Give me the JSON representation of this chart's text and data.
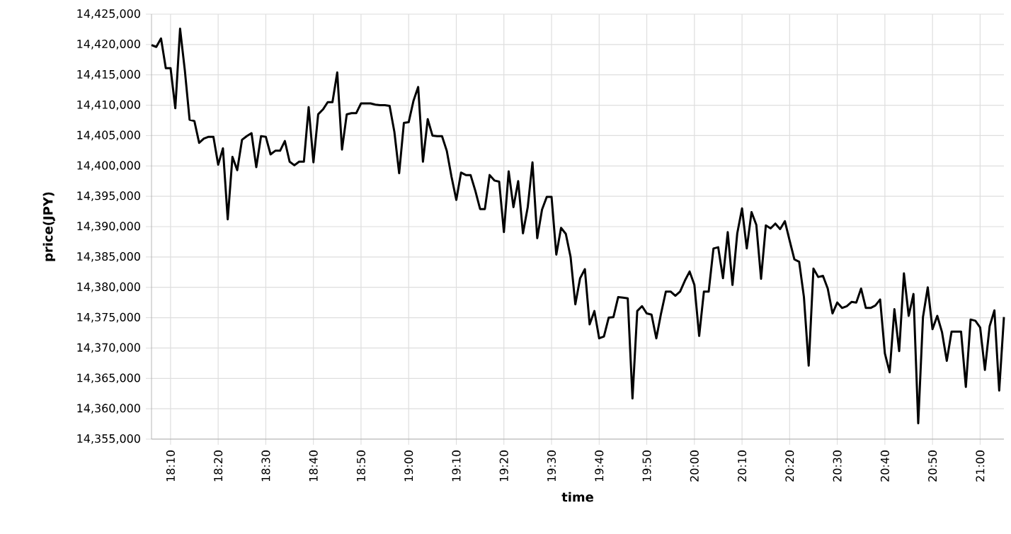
{
  "chart_data": {
    "type": "line",
    "xlabel": "time",
    "ylabel": "price(JPY)",
    "grid": true,
    "marker": "none",
    "line_style": "solid",
    "xlim": [
      18.1,
      21.0833
    ],
    "ylim": [
      14355000,
      14425000
    ],
    "xticks": [
      {
        "value": 18.1667,
        "label": "18:10"
      },
      {
        "value": 18.3333,
        "label": "18:20"
      },
      {
        "value": 18.5,
        "label": "18:30"
      },
      {
        "value": 18.6667,
        "label": "18:40"
      },
      {
        "value": 18.8333,
        "label": "18:50"
      },
      {
        "value": 19,
        "label": "19:00"
      },
      {
        "value": 19.1667,
        "label": "19:10"
      },
      {
        "value": 19.3333,
        "label": "19:20"
      },
      {
        "value": 19.5,
        "label": "19:30"
      },
      {
        "value": 19.6667,
        "label": "19:40"
      },
      {
        "value": 19.8333,
        "label": "19:50"
      },
      {
        "value": 20,
        "label": "20:00"
      },
      {
        "value": 20.1667,
        "label": "20:10"
      },
      {
        "value": 20.3333,
        "label": "20:20"
      },
      {
        "value": 20.5,
        "label": "20:30"
      },
      {
        "value": 20.6667,
        "label": "20:40"
      },
      {
        "value": 20.8333,
        "label": "20:50"
      },
      {
        "value": 21,
        "label": "21:00"
      }
    ],
    "yticks": [
      {
        "value": 14355000,
        "label": "14,355,000"
      },
      {
        "value": 14360000,
        "label": "14,360,000"
      },
      {
        "value": 14365000,
        "label": "14,365,000"
      },
      {
        "value": 14370000,
        "label": "14,370,000"
      },
      {
        "value": 14375000,
        "label": "14,375,000"
      },
      {
        "value": 14380000,
        "label": "14,380,000"
      },
      {
        "value": 14385000,
        "label": "14,385,000"
      },
      {
        "value": 14390000,
        "label": "14,390,000"
      },
      {
        "value": 14395000,
        "label": "14,395,000"
      },
      {
        "value": 14400000,
        "label": "14,400,000"
      },
      {
        "value": 14405000,
        "label": "14,405,000"
      },
      {
        "value": 14410000,
        "label": "14,410,000"
      },
      {
        "value": 14415000,
        "label": "14,415,000"
      },
      {
        "value": 14420000,
        "label": "14,420,000"
      },
      {
        "value": 14425000,
        "label": "14,425,000"
      }
    ],
    "x": [
      18.1,
      18.1167,
      18.1333,
      18.15,
      18.1667,
      18.1833,
      18.2,
      18.2167,
      18.2333,
      18.25,
      18.2667,
      18.2833,
      18.3,
      18.3167,
      18.3333,
      18.35,
      18.3667,
      18.3833,
      18.4,
      18.4167,
      18.4333,
      18.45,
      18.4667,
      18.4833,
      18.5,
      18.5167,
      18.5333,
      18.55,
      18.5667,
      18.5833,
      18.6,
      18.6167,
      18.6333,
      18.65,
      18.6667,
      18.6833,
      18.7,
      18.7167,
      18.7333,
      18.75,
      18.7667,
      18.7833,
      18.8,
      18.8167,
      18.8333,
      18.85,
      18.8667,
      18.8833,
      18.9,
      18.9167,
      18.9333,
      18.95,
      18.9667,
      18.9833,
      19.0,
      19.0167,
      19.0333,
      19.05,
      19.0667,
      19.0833,
      19.1,
      19.1167,
      19.1333,
      19.15,
      19.1667,
      19.1833,
      19.2,
      19.2167,
      19.2333,
      19.25,
      19.2667,
      19.2833,
      19.3,
      19.3167,
      19.3333,
      19.35,
      19.3667,
      19.3833,
      19.4,
      19.4167,
      19.4333,
      19.45,
      19.4667,
      19.4833,
      19.5,
      19.5167,
      19.5333,
      19.55,
      19.5667,
      19.5833,
      19.6,
      19.6167,
      19.6333,
      19.65,
      19.6667,
      19.6833,
      19.7,
      19.7167,
      19.7333,
      19.75,
      19.7667,
      19.7833,
      19.8,
      19.8167,
      19.8333,
      19.85,
      19.8667,
      19.8833,
      19.9,
      19.9167,
      19.9333,
      19.95,
      19.9667,
      19.9833,
      20.0,
      20.0167,
      20.0333,
      20.05,
      20.0667,
      20.0833,
      20.1,
      20.1167,
      20.1333,
      20.15,
      20.1667,
      20.1833,
      20.2,
      20.2167,
      20.2333,
      20.25,
      20.2667,
      20.2833,
      20.3,
      20.3167,
      20.3333,
      20.35,
      20.3667,
      20.3833,
      20.4,
      20.4167,
      20.4333,
      20.45,
      20.4667,
      20.4833,
      20.5,
      20.5167,
      20.5333,
      20.55,
      20.5667,
      20.5833,
      20.6,
      20.6167,
      20.6333,
      20.65,
      20.6667,
      20.6833,
      20.7,
      20.7167,
      20.7333,
      20.75,
      20.7667,
      20.7833,
      20.8,
      20.8167,
      20.8333,
      20.85,
      20.8667,
      20.8833,
      20.9,
      20.9167,
      20.9333,
      20.95,
      20.9667,
      20.9833,
      21.0,
      21.0167,
      21.0333,
      21.05,
      21.0667,
      21.0833
    ],
    "series": [
      {
        "color": "#000000",
        "values": [
          14419900,
          14419600,
          14421000,
          14416100,
          14416100,
          14409500,
          14422600,
          14415700,
          14407600,
          14407400,
          14403800,
          14404500,
          14404800,
          14404800,
          14400200,
          14402900,
          14391200,
          14401500,
          14399300,
          14404300,
          14404900,
          14405400,
          14399800,
          14404900,
          14404800,
          14401900,
          14402500,
          14402500,
          14404100,
          14400700,
          14400100,
          14400700,
          14400700,
          14409700,
          14400600,
          14408500,
          14409300,
          14410500,
          14410500,
          14415400,
          14402700,
          14408500,
          14408700,
          14408700,
          14410300,
          14410300,
          14410300,
          14410100,
          14410000,
          14410000,
          14409900,
          14405600,
          14398800,
          14407100,
          14407200,
          14410700,
          14413000,
          14400700,
          14407700,
          14405000,
          14404900,
          14404900,
          14402500,
          14398200,
          14394400,
          14398900,
          14398500,
          14398500,
          14395900,
          14392900,
          14392900,
          14398500,
          14397600,
          14397400,
          14389100,
          14399100,
          14393200,
          14397500,
          14388900,
          14393200,
          14400600,
          14388100,
          14392800,
          14394900,
          14394900,
          14385400,
          14389800,
          14388800,
          14385000,
          14377200,
          14381500,
          14383000,
          14373900,
          14376100,
          14371600,
          14371900,
          14375000,
          14375100,
          14378400,
          14378300,
          14378200,
          14361700,
          14376100,
          14376900,
          14375700,
          14375500,
          14371600,
          14375700,
          14379300,
          14379300,
          14378600,
          14379300,
          14381100,
          14382600,
          14380400,
          14372000,
          14379300,
          14379300,
          14386400,
          14386600,
          14381500,
          14389100,
          14380400,
          14388900,
          14393000,
          14386400,
          14392400,
          14390300,
          14381400,
          14390200,
          14389700,
          14390500,
          14389600,
          14390900,
          14387700,
          14384600,
          14384200,
          14378400,
          14367100,
          14383100,
          14381700,
          14381900,
          14379800,
          14375700,
          14377500,
          14376600,
          14376900,
          14377600,
          14377500,
          14379800,
          14376600,
          14376600,
          14377000,
          14378000,
          14369100,
          14366000,
          14376400,
          14369500,
          14382300,
          14375300,
          14378900,
          14357600,
          14375100,
          14380000,
          14373100,
          14375300,
          14372600,
          14367900,
          14372700,
          14372700,
          14372700,
          14363600,
          14374700,
          14374500,
          14373400,
          14366400,
          14373600,
          14376200,
          14363000,
          14375100
        ]
      }
    ]
  }
}
